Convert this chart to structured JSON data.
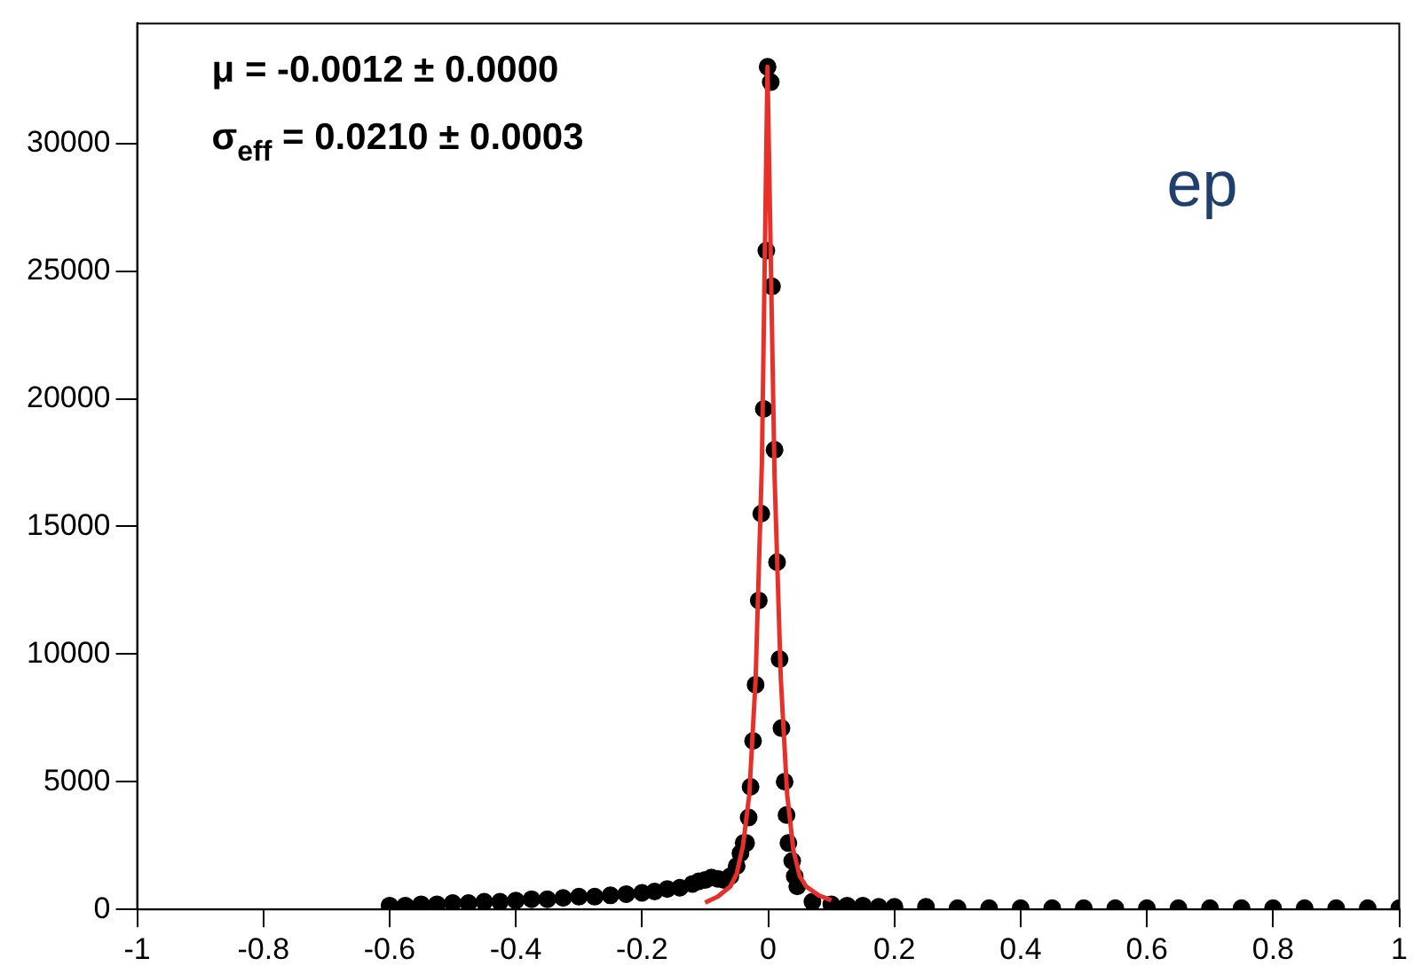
{
  "chart_data": {
    "type": "scatter",
    "marker": "circle",
    "legend": false,
    "grid": false,
    "xlim": [
      -1,
      1
    ],
    "xticks": [
      -1,
      -0.8,
      -0.6,
      -0.4,
      -0.2,
      0,
      0.2,
      0.4,
      0.6,
      0.8,
      1
    ],
    "ylim": [
      0,
      34700
    ],
    "yticks": [
      0,
      5000,
      10000,
      15000,
      20000,
      25000,
      30000
    ],
    "annotations": [
      "μ = -0.0012 ± 0.0000",
      "σ$_{eff}$ = 0.0210 ± 0.0003",
      "ep"
    ],
    "series": [
      {
        "color": "#000000",
        "x": [
          -0.6,
          -0.575,
          -0.55,
          -0.525,
          -0.5,
          -0.475,
          -0.45,
          -0.425,
          -0.4,
          -0.375,
          -0.35,
          -0.325,
          -0.3,
          -0.275,
          -0.25,
          -0.225,
          -0.2,
          -0.18,
          -0.16,
          -0.14,
          -0.12,
          -0.11,
          -0.1,
          -0.09,
          -0.08,
          -0.07,
          -0.06,
          -0.05,
          -0.044,
          -0.039,
          -0.035,
          -0.031,
          -0.028,
          -0.024,
          -0.02,
          -0.015,
          -0.011,
          -0.007,
          -0.003,
          -0.001,
          0.004,
          0.006,
          0.01,
          0.014,
          0.018,
          0.021,
          0.026,
          0.029,
          0.032,
          0.038,
          0.042,
          0.046,
          0.07,
          0.1,
          0.125,
          0.15,
          0.175,
          0.2,
          0.25,
          0.3,
          0.35,
          0.4,
          0.45,
          0.5,
          0.55,
          0.6,
          0.65,
          0.7,
          0.75,
          0.8,
          0.85,
          0.9,
          0.95,
          1.0
        ],
        "values": [
          150,
          150,
          200,
          200,
          250,
          250,
          300,
          300,
          350,
          400,
          400,
          450,
          500,
          500,
          550,
          600,
          650,
          700,
          800,
          850,
          1000,
          1100,
          1150,
          1250,
          1200,
          1150,
          1300,
          1700,
          2200,
          2600,
          2600,
          3600,
          4800,
          6600,
          8800,
          12100,
          15500,
          19600,
          25800,
          33000,
          32400,
          24400,
          18000,
          13600,
          9800,
          7100,
          5000,
          3700,
          2600,
          1900,
          1300,
          900,
          300,
          200,
          150,
          150,
          100,
          100,
          100,
          50,
          50,
          50,
          50,
          50,
          50,
          50,
          50,
          50,
          50,
          50,
          50,
          50,
          50,
          50
        ]
      },
      {
        "type": "line",
        "color": "#e8302a",
        "marker": "none",
        "x": [
          -0.1,
          -0.08,
          -0.06,
          -0.05,
          -0.04,
          -0.03,
          -0.02,
          -0.01,
          -0.0012,
          0.01,
          0.02,
          0.03,
          0.04,
          0.05,
          0.06,
          0.08,
          0.1
        ],
        "values": [
          270,
          500,
          900,
          1400,
          2500,
          4500,
          9000,
          17500,
          33000,
          17000,
          9000,
          4500,
          2300,
          1300,
          900,
          550,
          360
        ]
      }
    ]
  }
}
